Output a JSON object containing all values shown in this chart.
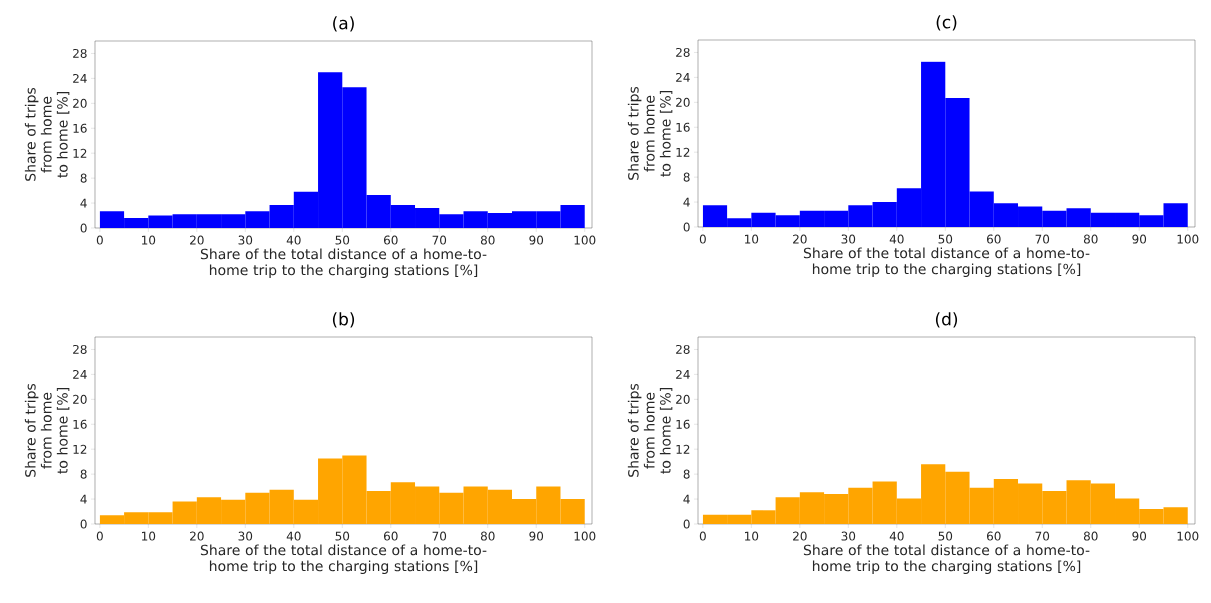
{
  "chart_data": [
    {
      "type": "histogram",
      "title": "(a)",
      "xlabel": "Share of the total distance of a home-to-home trip to the charging stations [%]",
      "ylabel": "Share of trips from home to home [%]",
      "color": "#0000ff",
      "bins": [
        0,
        5,
        10,
        15,
        20,
        25,
        30,
        35,
        40,
        45,
        50,
        55,
        60,
        65,
        70,
        75,
        80,
        85,
        90,
        95,
        100
      ],
      "values": [
        2.7,
        1.6,
        2.0,
        2.2,
        2.2,
        2.2,
        2.7,
        3.7,
        5.8,
        25.0,
        22.6,
        5.3,
        3.7,
        3.2,
        2.2,
        2.7,
        2.4,
        2.7,
        2.7,
        3.7
      ],
      "xlim": [
        -1,
        101.5
      ],
      "ylim": [
        0,
        30
      ],
      "xticks": [
        0,
        10,
        20,
        30,
        40,
        50,
        60,
        70,
        80,
        90,
        100
      ],
      "yticks": [
        0,
        4,
        8,
        12,
        16,
        20,
        24,
        28
      ]
    },
    {
      "type": "histogram",
      "title": "(c)",
      "xlabel": "Share of the total distance of a home-to-home trip to the charging stations [%]",
      "ylabel": "Share of trips from home to home [%]",
      "color": "#0000ff",
      "bins": [
        0,
        5,
        10,
        15,
        20,
        25,
        30,
        35,
        40,
        45,
        50,
        55,
        60,
        65,
        70,
        75,
        80,
        85,
        90,
        95,
        100
      ],
      "values": [
        3.5,
        1.4,
        2.3,
        1.9,
        2.6,
        2.6,
        3.5,
        4.0,
        6.2,
        26.5,
        20.7,
        5.7,
        3.8,
        3.3,
        2.6,
        3.0,
        2.3,
        2.3,
        1.9,
        3.8
      ],
      "xlim": [
        -1,
        101.5
      ],
      "ylim": [
        0,
        30
      ],
      "xticks": [
        0,
        10,
        20,
        30,
        40,
        50,
        60,
        70,
        80,
        90,
        100
      ],
      "yticks": [
        0,
        4,
        8,
        12,
        16,
        20,
        24,
        28
      ]
    },
    {
      "type": "histogram",
      "title": "(b)",
      "xlabel": "Share of the total distance of a home-to-home trip to the charging stations [%]",
      "ylabel": "Share of trips from home to home [%]",
      "color": "#ffa500",
      "bins": [
        0,
        5,
        10,
        15,
        20,
        25,
        30,
        35,
        40,
        45,
        50,
        55,
        60,
        65,
        70,
        75,
        80,
        85,
        90,
        95,
        100
      ],
      "values": [
        1.4,
        1.9,
        1.9,
        3.6,
        4.3,
        3.9,
        5.0,
        5.5,
        3.9,
        10.5,
        11.0,
        5.3,
        6.7,
        6.0,
        5.0,
        6.0,
        5.5,
        4.0,
        6.0,
        4.0
      ],
      "xlim": [
        -1,
        101.5
      ],
      "ylim": [
        0,
        30
      ],
      "xticks": [
        0,
        10,
        20,
        30,
        40,
        50,
        60,
        70,
        80,
        90,
        100
      ],
      "yticks": [
        0,
        4,
        8,
        12,
        16,
        20,
        24,
        28
      ]
    },
    {
      "type": "histogram",
      "title": "(d)",
      "xlabel": "Share of the total distance of a home-to-home trip to the charging stations [%]",
      "ylabel": "Share of trips from home to home [%]",
      "color": "#ffa500",
      "bins": [
        0,
        5,
        10,
        15,
        20,
        25,
        30,
        35,
        40,
        45,
        50,
        55,
        60,
        65,
        70,
        75,
        80,
        85,
        90,
        95,
        100
      ],
      "values": [
        1.5,
        1.5,
        2.2,
        4.3,
        5.1,
        4.8,
        5.8,
        6.8,
        4.1,
        9.6,
        8.4,
        5.8,
        7.2,
        6.5,
        5.3,
        7.0,
        6.5,
        4.1,
        2.4,
        2.7
      ],
      "xlim": [
        -1,
        101.5
      ],
      "ylim": [
        0,
        30
      ],
      "xticks": [
        0,
        10,
        20,
        30,
        40,
        50,
        60,
        70,
        80,
        90,
        100
      ],
      "yticks": [
        0,
        4,
        8,
        12,
        16,
        20,
        24,
        28
      ]
    }
  ]
}
